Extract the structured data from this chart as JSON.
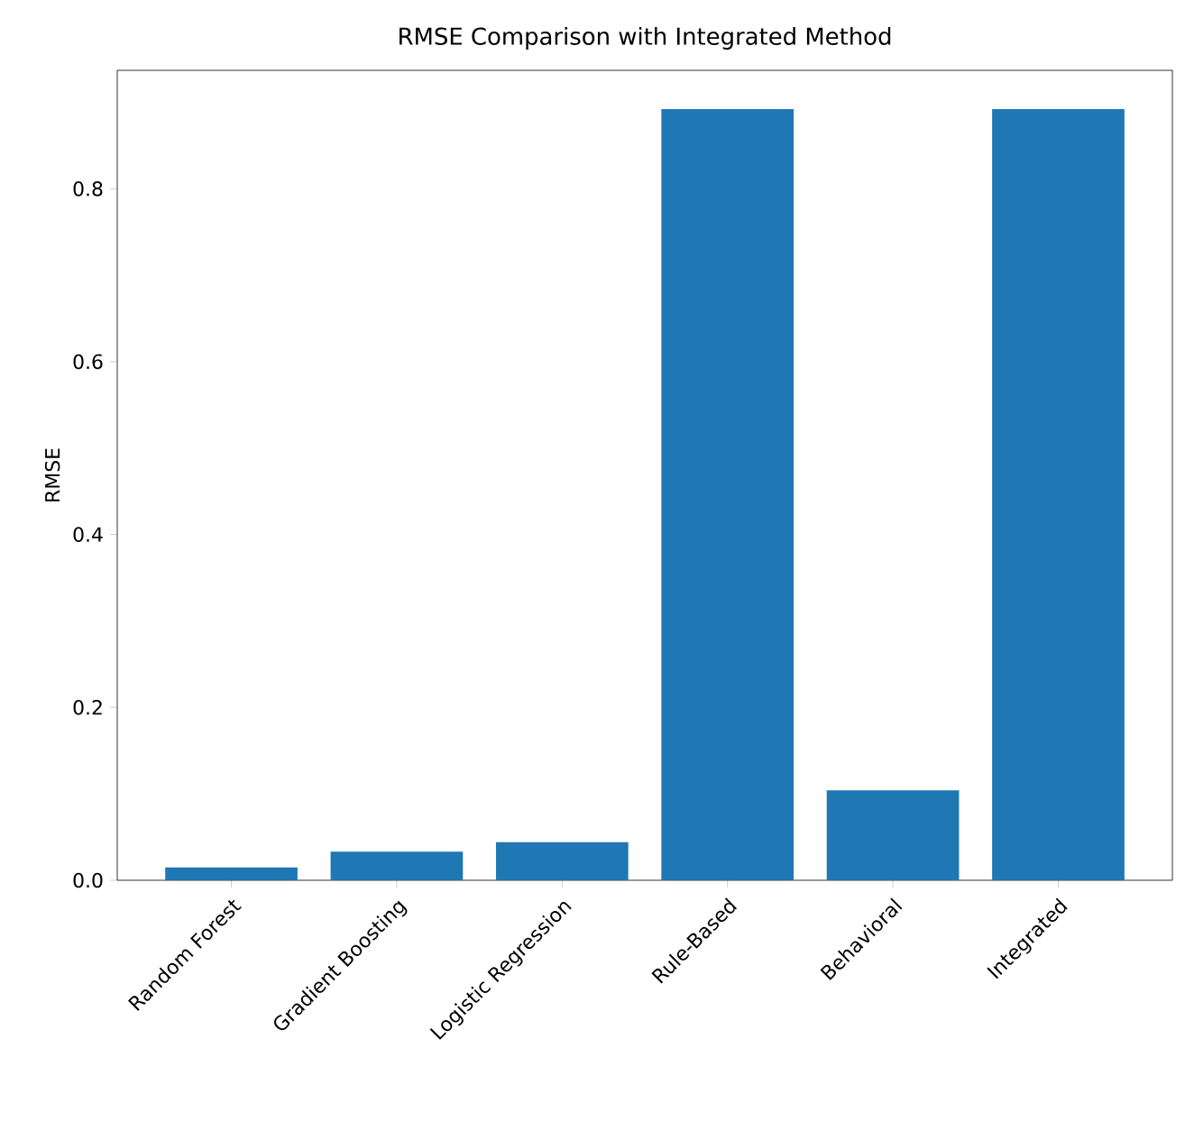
{
  "chart_data": {
    "type": "bar",
    "title": "RMSE Comparison with Integrated Method",
    "ylabel": "RMSE",
    "categories": [
      "Random Forest",
      "Gradient Boosting",
      "Logistic Regression",
      "Rule-Based",
      "Behavioral",
      "Integrated"
    ],
    "values": [
      0.015,
      0.033,
      0.044,
      0.892,
      0.104,
      0.892
    ],
    "color": "#1f77b4",
    "ylim": [
      0,
      0.937
    ],
    "yticks": [
      {
        "value": 0,
        "label": "0.0"
      },
      {
        "value": 0.2,
        "label": "0.2"
      },
      {
        "value": 0.4,
        "label": "0.4"
      },
      {
        "value": 0.6,
        "label": "0.6"
      },
      {
        "value": 0.8,
        "label": "0.8"
      }
    ]
  }
}
